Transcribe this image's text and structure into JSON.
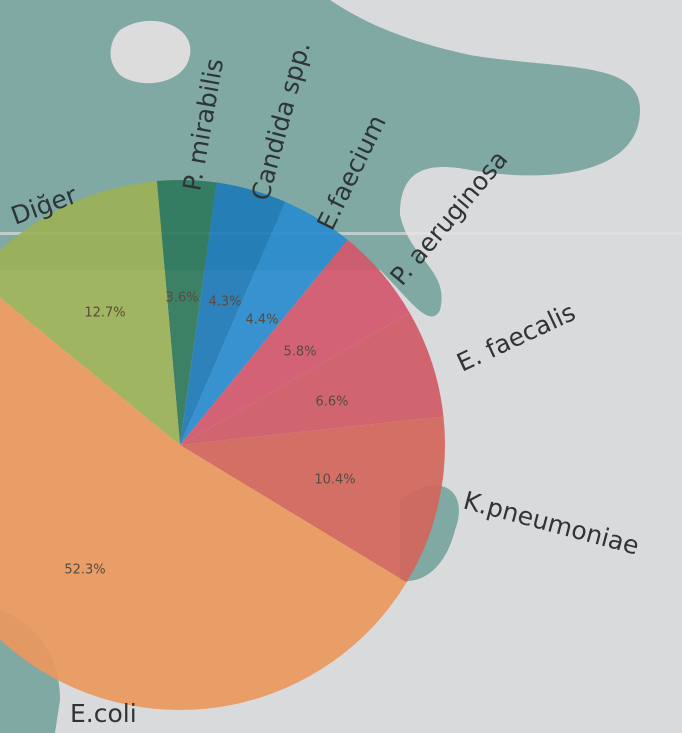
{
  "chart_data": {
    "type": "pie",
    "categories": [
      "P. mirabilis",
      "Candida spp.",
      "E.faecium",
      "P. aeruginosa",
      "E. faecalis",
      "K.pneumoniae",
      "E.coli",
      "Diğer"
    ],
    "values": [
      3.6,
      4.3,
      4.4,
      5.8,
      6.6,
      10.4,
      52.3,
      12.7
    ],
    "value_labels": [
      "3.6%",
      "4.3%",
      "4.4%",
      "5.8%",
      "6.6%",
      "10.4%",
      "52.3%",
      "12.7%"
    ],
    "colors": [
      "#2f7a5c",
      "#1f7bb8",
      "#2a8ccd",
      "#d2586e",
      "#cf5a66",
      "#d3665c",
      "#e9985e",
      "#9bb257"
    ]
  }
}
